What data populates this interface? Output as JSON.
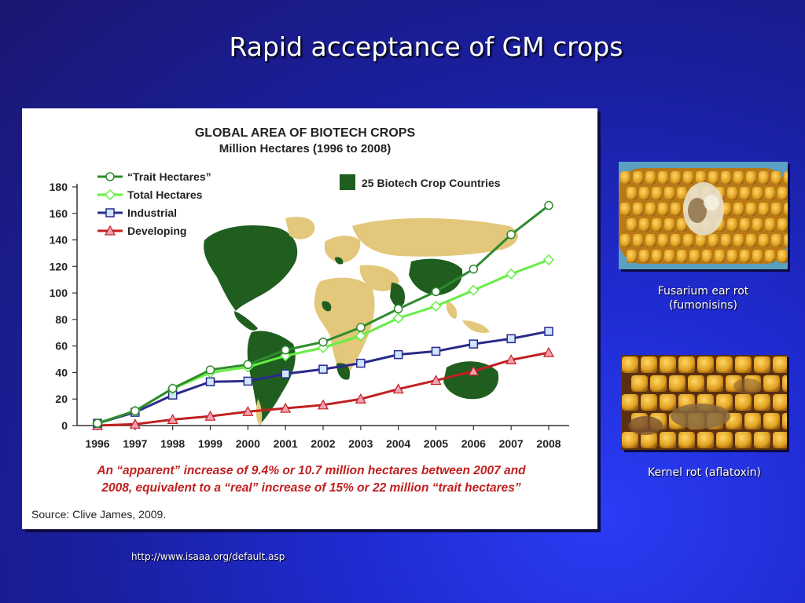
{
  "slide": {
    "title": "Rapid acceptance of GM crops",
    "url": "http://www.isaaa.org/default.asp"
  },
  "chart_data": {
    "type": "line",
    "title": "GLOBAL AREA OF BIOTECH CROPS",
    "subtitle": "Million Hectares (1996 to 2008)",
    "xlabel": "",
    "ylabel": "",
    "ylim": [
      0,
      180
    ],
    "yticks": [
      0,
      20,
      40,
      60,
      80,
      100,
      120,
      140,
      160,
      180
    ],
    "categories": [
      "1996",
      "1997",
      "1998",
      "1999",
      "2000",
      "2001",
      "2002",
      "2003",
      "2004",
      "2005",
      "2006",
      "2007",
      "2008"
    ],
    "legend_position": "top-left",
    "series": [
      {
        "name": "“Trait Hectares”",
        "color": "#2e8b2e",
        "marker": "circle",
        "values": [
          1.7,
          11,
          28,
          42,
          46,
          57,
          63,
          74,
          88,
          101,
          118,
          144,
          166
        ]
      },
      {
        "name": "Total Hectares",
        "color": "#66ee44",
        "marker": "diamond",
        "values": [
          1.7,
          11,
          27.8,
          39.9,
          44.2,
          52.6,
          58.7,
          67.7,
          81,
          90,
          102,
          114.3,
          125
        ]
      },
      {
        "name": "Industrial",
        "color": "#2a2a8c",
        "marker": "square",
        "values": [
          1.7,
          10,
          23,
          33,
          33.5,
          39,
          42.5,
          47,
          53.5,
          56,
          61.5,
          65.5,
          71
        ]
      },
      {
        "name": "Developing",
        "color": "#c02020",
        "marker": "triangle",
        "values": [
          0,
          1,
          4.5,
          7,
          10.5,
          13,
          15.5,
          20,
          27.5,
          34,
          41,
          49.5,
          55
        ]
      }
    ],
    "map_legend": "25 Biotech Crop Countries",
    "annotation_line1": "An “apparent” increase of 9.4% or 10.7 million hectares between 2007 and",
    "annotation_line2": "2008, equivalent to a “real” increase of 15% or 22 million “trait hectares”",
    "source": "Source: Clive James, 2009."
  },
  "photos": [
    {
      "caption_line1": "Fusarium ear rot",
      "caption_line2": "(fumonisins)",
      "icon": "corn-ear-fusarium"
    },
    {
      "caption_line1": "Kernel rot (aflatoxin)",
      "icon": "corn-ear-kernel-rot"
    }
  ],
  "colors": {
    "slide_background": "#1f2bd0",
    "map_biotech_country": "#1f5e1f",
    "map_other_land": "#e3c77a",
    "annotation_text": "#c02020"
  }
}
